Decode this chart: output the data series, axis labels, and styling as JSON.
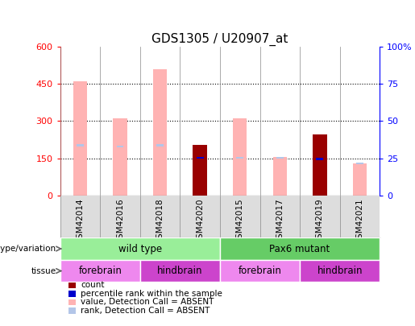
{
  "title": "GDS1305 / U20907_at",
  "samples": [
    "GSM42014",
    "GSM42016",
    "GSM42018",
    "GSM42020",
    "GSM42015",
    "GSM42017",
    "GSM42019",
    "GSM42021"
  ],
  "value_absent": [
    460,
    310,
    510,
    0,
    310,
    155,
    0,
    130
  ],
  "rank_absent_height": [
    8,
    8,
    8,
    0,
    8,
    8,
    0,
    8
  ],
  "rank_absent_pos": [
    198,
    193,
    198,
    0,
    148,
    148,
    0,
    125
  ],
  "count": [
    0,
    0,
    0,
    205,
    0,
    0,
    245,
    0
  ],
  "percentile_pos": [
    0,
    0,
    0,
    148,
    0,
    0,
    143,
    0
  ],
  "percentile_height": [
    0,
    0,
    0,
    8,
    0,
    0,
    8,
    0
  ],
  "ylim_left": [
    0,
    600
  ],
  "ylim_right": [
    0,
    100
  ],
  "yticks_left": [
    0,
    150,
    300,
    450,
    600
  ],
  "yticks_right": [
    0,
    25,
    50,
    75,
    100
  ],
  "ytick_right_labels": [
    "0",
    "25",
    "50",
    "75",
    "100%"
  ],
  "color_value_absent": "#ffb3b3",
  "color_rank_absent": "#b3c6e8",
  "color_count": "#990000",
  "color_percentile": "#0000cc",
  "genotype_groups": [
    {
      "label": "wild type",
      "start": 0,
      "end": 4,
      "color": "#99ee99"
    },
    {
      "label": "Pax6 mutant",
      "start": 4,
      "end": 8,
      "color": "#66cc66"
    }
  ],
  "tissue_groups": [
    {
      "label": "forebrain",
      "start": 0,
      "end": 2,
      "color": "#ee88ee"
    },
    {
      "label": "hindbrain",
      "start": 2,
      "end": 4,
      "color": "#cc44cc"
    },
    {
      "label": "forebrain",
      "start": 4,
      "end": 6,
      "color": "#ee88ee"
    },
    {
      "label": "hindbrain",
      "start": 6,
      "end": 8,
      "color": "#cc44cc"
    }
  ],
  "legend_items": [
    {
      "label": "count",
      "color": "#990000"
    },
    {
      "label": "percentile rank within the sample",
      "color": "#0000cc"
    },
    {
      "label": "value, Detection Call = ABSENT",
      "color": "#ffb3b3"
    },
    {
      "label": "rank, Detection Call = ABSENT",
      "color": "#b3c6e8"
    }
  ],
  "bar_width": 0.35,
  "col_bar_width": 0.18
}
